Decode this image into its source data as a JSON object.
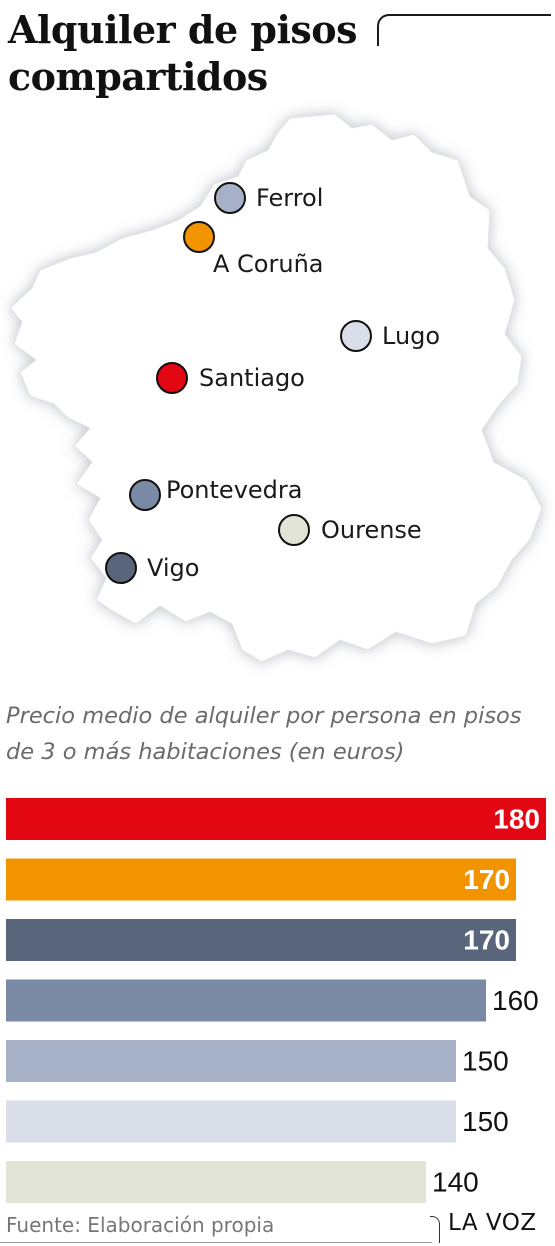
{
  "title": "Alquiler de pisos compartidos",
  "subtitle": "Precio medio de alquiler por persona en pisos de 3 o más habitaciones (en euros)",
  "cities": [
    {
      "name": "Ferrol",
      "color": "#a6b1c8"
    },
    {
      "name": "A Coruña",
      "color": "#f29400"
    },
    {
      "name": "Lugo",
      "color": "#d9dee8"
    },
    {
      "name": "Santiago",
      "color": "#e30613"
    },
    {
      "name": "Pontevedra",
      "color": "#7a89a4"
    },
    {
      "name": "Ourense",
      "color": "#e2e4d8"
    },
    {
      "name": "Vigo",
      "color": "#58657a"
    }
  ],
  "chart_data": {
    "type": "bar",
    "orientation": "horizontal",
    "values": [
      180,
      170,
      170,
      160,
      150,
      150,
      140
    ],
    "colors": [
      "#e30613",
      "#f29400",
      "#58657a",
      "#7a89a4",
      "#a6b1c8",
      "#d9dee8",
      "#e2e4d8"
    ],
    "xlim": [
      0,
      180
    ],
    "legend": "map color key"
  },
  "footer": {
    "source": "Fuente: Elaboración propia",
    "logo": "LA VOZ"
  }
}
